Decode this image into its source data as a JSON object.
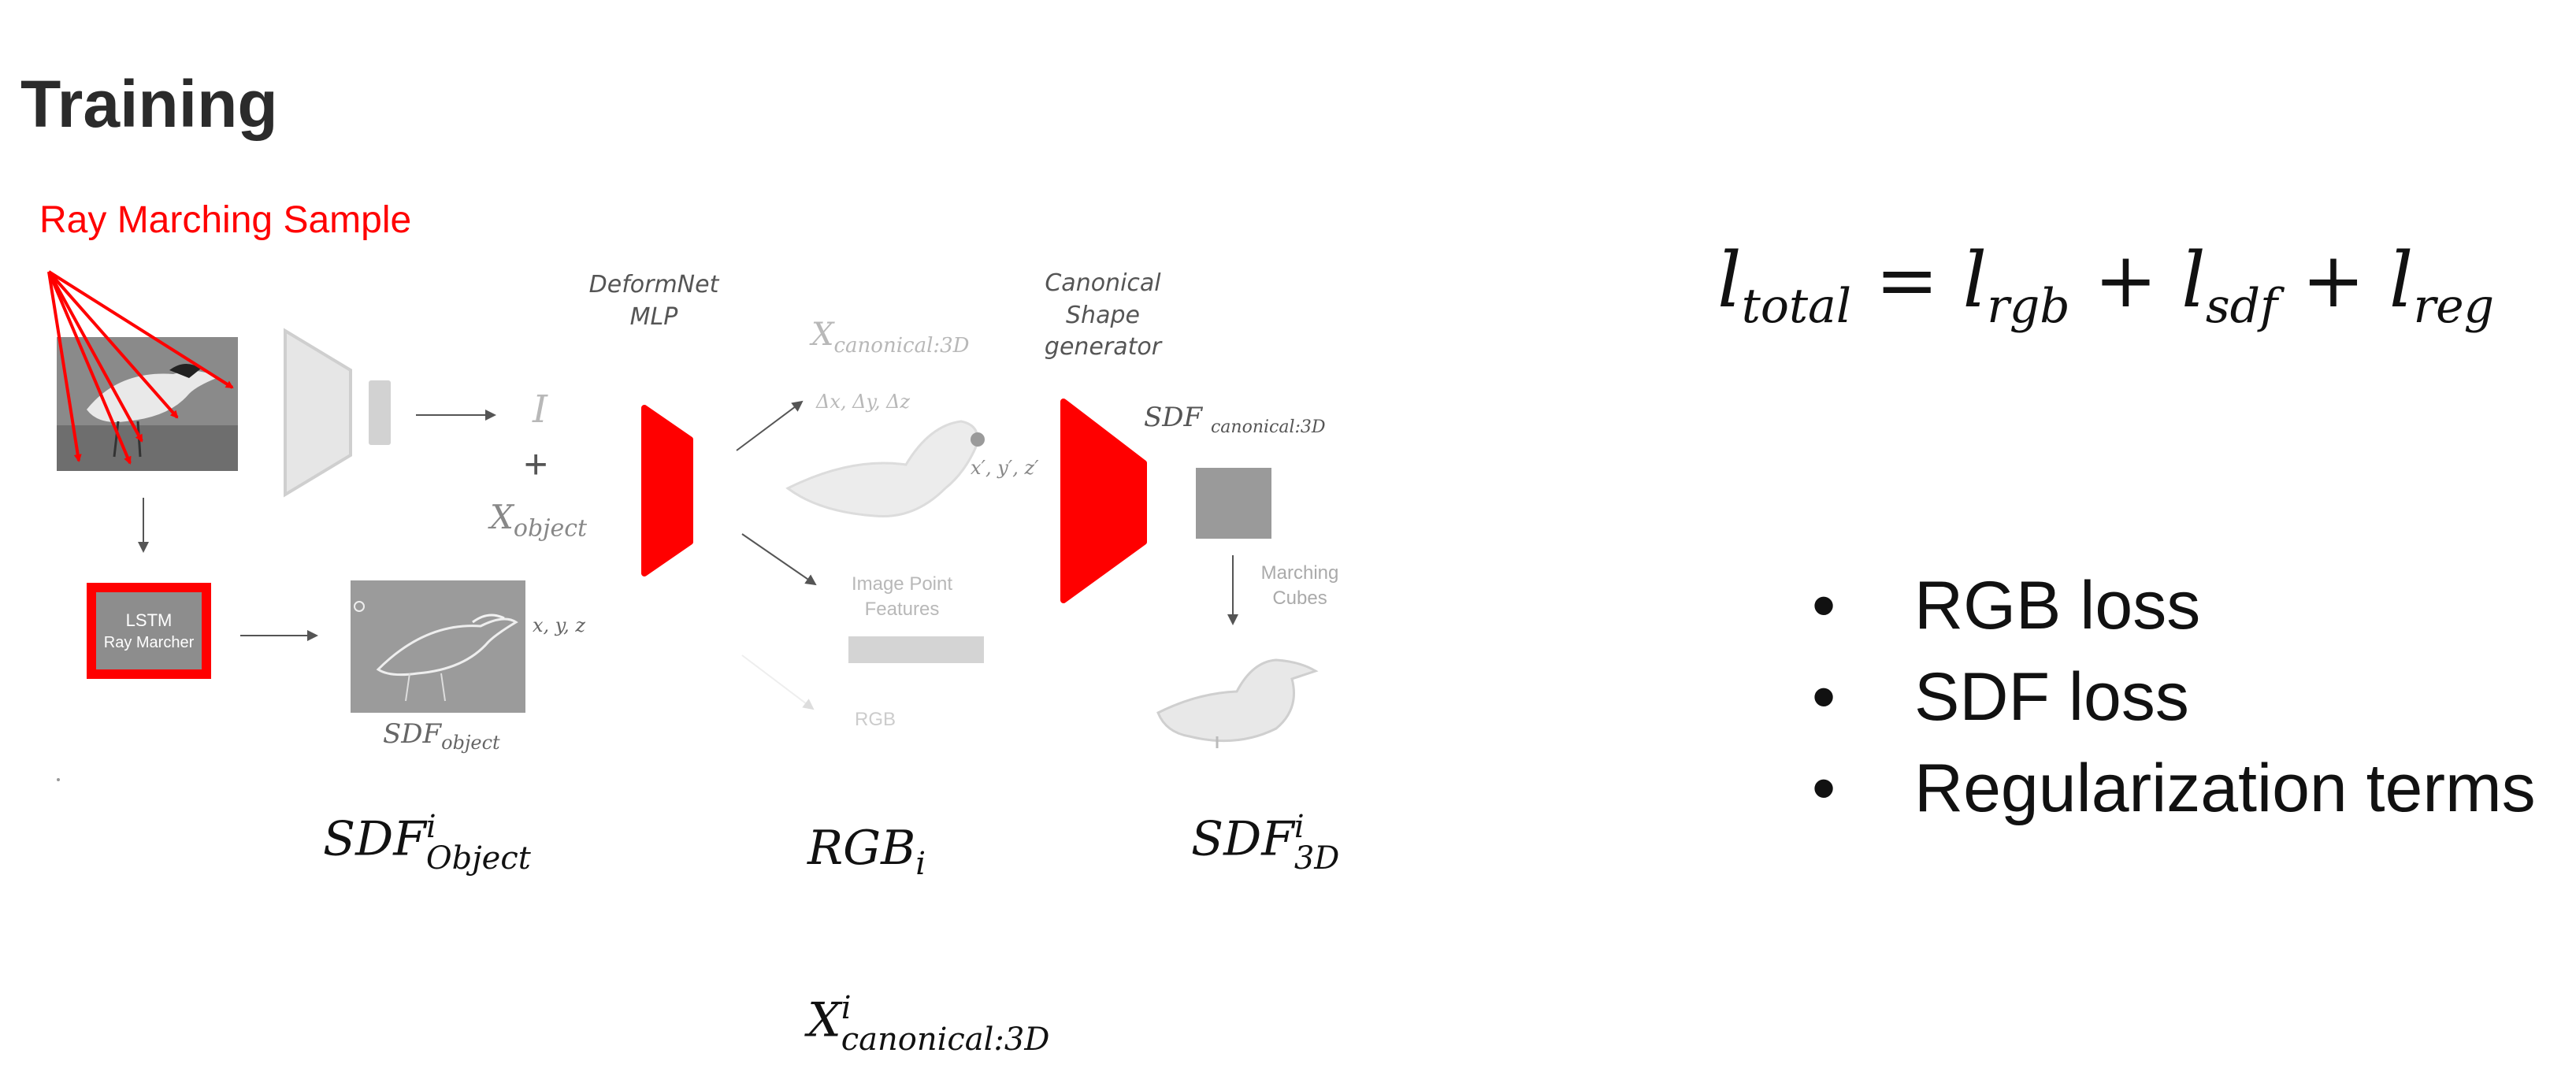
{
  "title": "Training",
  "ray_sample_label": "Ray Marching Sample",
  "deformnet": {
    "line1": "DeformNet",
    "line2": "MLP"
  },
  "canonical_gen": {
    "line1": "Canonical",
    "line2": "Shape",
    "line3": "generator"
  },
  "lstm": {
    "line1": "LSTM",
    "line2": "Ray Marcher"
  },
  "labels": {
    "I": "I",
    "plus": "+",
    "x_object_base": "X",
    "x_object_sub": "object",
    "x_canon_base": "X",
    "x_canon_sub": "canonical:3D",
    "delta": "Δx, Δy, Δz",
    "xprime": "x′, y′, z′",
    "xyz": "x, y, z",
    "sdf_object_base": "SDF",
    "sdf_object_sub": "object",
    "sdf_canon_base": "SDF",
    "sdf_canon_sub": "canonical:3D",
    "image_point_1": "Image Point",
    "image_point_2": "Features",
    "rgb": "RGB",
    "marching_1": "Marching",
    "marching_2": "Cubes"
  },
  "bottom": {
    "sdf_obj": {
      "base": "SDF",
      "sup": "i",
      "sub": "Object"
    },
    "rgb": {
      "base": "RGB",
      "sub": "i"
    },
    "sdf_3d": {
      "base": "SDF",
      "sup": "i",
      "sub": "3D"
    },
    "x_canon": {
      "base": "X",
      "sup": "i",
      "sub": "canonical:3D"
    }
  },
  "loss_equation": {
    "l1": "l",
    "s1": "total",
    "eq": " = ",
    "l2": "l",
    "s2": "rgb",
    "p1": " + ",
    "l3": "l",
    "s3": "sdf",
    "p2": " + ",
    "l4": "l",
    "s4": "reg"
  },
  "bullets": [
    "RGB loss",
    "SDF loss",
    "Regularization terms"
  ],
  "colors": {
    "accent": "#ff0000",
    "title": "#2b2b2b",
    "faint": "#b8b8b8"
  },
  "icons": [
    "bird-photo",
    "encoder-trapezoid",
    "deformnet-block",
    "canonical-generator-block",
    "bird-3d-mesh",
    "sdf-bird-sketch"
  ]
}
